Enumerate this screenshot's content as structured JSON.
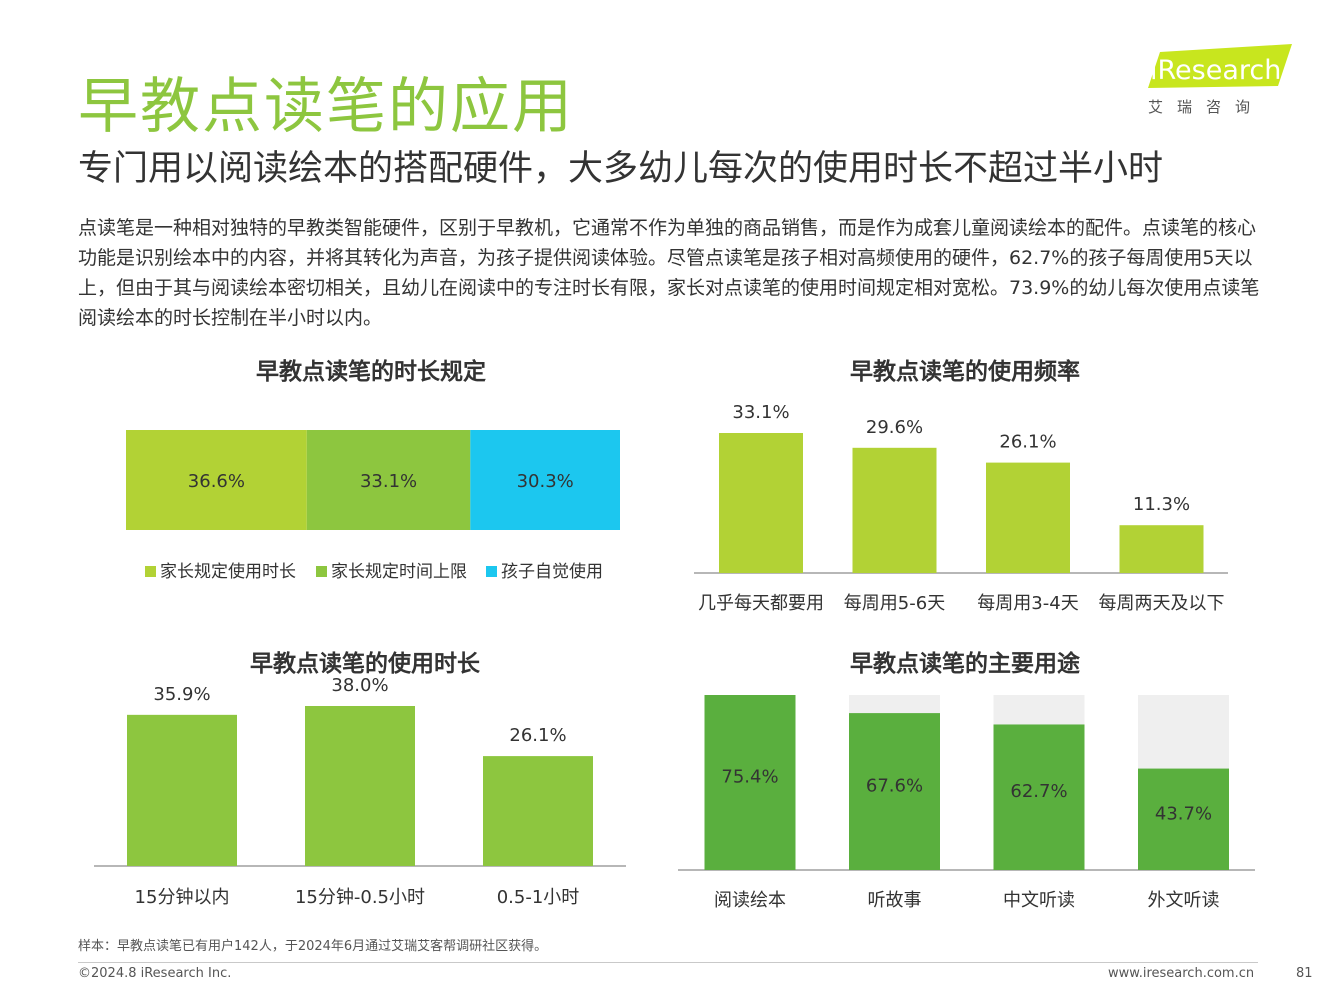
{
  "header": {
    "title": "早教点读笔的应用",
    "subtitle": "专门用以阅读绘本的搭配硬件，大多幼儿每次的使用时长不超过半小时",
    "logo_text": "iResearch",
    "logo_sub": "艾瑞咨询",
    "accent": "#8dc63f"
  },
  "intro": "点读笔是一种相对独特的早教类智能硬件，区别于早教机，它通常不作为单独的商品销售，而是作为成套儿童阅读绘本的配件。点读笔的核心功能是识别绘本中的内容，并将其转化为声音，为孩子提供阅读体验。尽管点读笔是孩子相对高频使用的硬件，62.7%的孩子每周使用5天以上，但由于其与阅读绘本密切相关，且幼儿在阅读中的专注时长有限，家长对点读笔的使用时间规定相对宽松。73.9%的幼儿每次使用点读笔阅读绘本的时长控制在半小时以内。",
  "chart_data": [
    {
      "type": "bar",
      "orientation": "horizontal-stacked",
      "title": "早教点读笔的时长规定",
      "series": [
        {
          "name": "家长规定使用时长",
          "value": 36.6,
          "label": "36.6%",
          "color": "#b2d235"
        },
        {
          "name": "家长规定时间上限",
          "value": 33.1,
          "label": "33.1%",
          "color": "#8dc63f"
        },
        {
          "name": "孩子自觉使用",
          "value": 30.3,
          "label": "30.3%",
          "color": "#1cc7ef"
        }
      ],
      "legend": "bottom"
    },
    {
      "type": "bar",
      "title": "早教点读笔的使用频率",
      "categories": [
        "几乎每天都要用",
        "每周用5-6天",
        "每周用3-4天",
        "每周两天及以下"
      ],
      "values": [
        33.1,
        29.6,
        26.1,
        11.3
      ],
      "labels": [
        "33.1%",
        "29.6%",
        "26.1%",
        "11.3%"
      ],
      "ylim": [
        0,
        33.1
      ],
      "color": "#b2d235"
    },
    {
      "type": "bar",
      "title": "早教点读笔的使用时长",
      "categories": [
        "15分钟以内",
        "15分钟-0.5小时",
        "0.5-1小时"
      ],
      "values": [
        35.9,
        38.0,
        26.1
      ],
      "labels": [
        "35.9%",
        "38.0%",
        "26.1%"
      ],
      "ylim": [
        0,
        38.0
      ],
      "color": "#8dc63f"
    },
    {
      "type": "bar",
      "title": "早教点读笔的主要用途",
      "categories": [
        "阅读绘本",
        "听故事",
        "中文听读",
        "外文听读"
      ],
      "values": [
        75.4,
        67.6,
        62.7,
        43.7
      ],
      "labels": [
        "75.4%",
        "67.6%",
        "62.7%",
        "43.7%"
      ],
      "ylim": [
        0,
        75.4
      ],
      "color": "#5aaf3e",
      "background_color": "#efefef"
    }
  ],
  "footer": {
    "sample_note": "样本：早教点读笔已有用户142人，于2024年6月通过艾瑞艾客帮调研社区获得。",
    "copyright": "©2024.8 iResearch Inc.",
    "website": "www.iresearch.com.cn",
    "page_number": "81"
  }
}
